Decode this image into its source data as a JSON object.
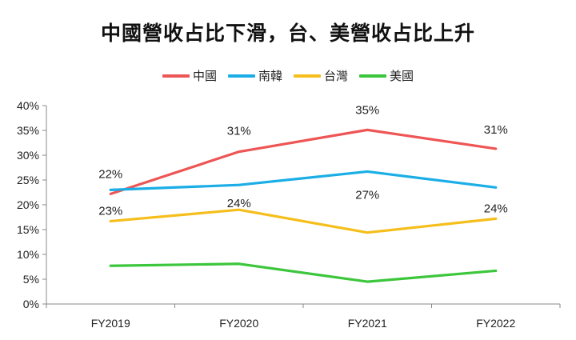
{
  "chart_data": {
    "type": "line",
    "title": "中國營收占比下滑，台、美營收占比上升",
    "xlabel": "",
    "ylabel": "",
    "categories": [
      "FY2019",
      "FY2020",
      "FY2021",
      "FY2022"
    ],
    "ylim": [
      0,
      40
    ],
    "yticks": [
      "0%",
      "5%",
      "10%",
      "15%",
      "20%",
      "25%",
      "30%",
      "35%",
      "40%"
    ],
    "legend_position": "top-center",
    "grid": false,
    "series": [
      {
        "name": "中國",
        "color": "#EE5555",
        "values": [
          22.2,
          30.7,
          35.1,
          31.3
        ],
        "labels": [
          "22%",
          "31%",
          "35%",
          "31%"
        ]
      },
      {
        "name": "南韓",
        "color": "#1BAEE6",
        "values": [
          23.0,
          24.0,
          26.7,
          23.5
        ],
        "labels": [
          "23%",
          "24%",
          "27%",
          "24%"
        ]
      },
      {
        "name": "台灣",
        "color": "#F5BE1B",
        "values": [
          16.7,
          19.0,
          14.4,
          17.2
        ],
        "labels": [
          "",
          "",
          "",
          ""
        ]
      },
      {
        "name": "美國",
        "color": "#3CC63C",
        "values": [
          7.7,
          8.1,
          4.5,
          6.7
        ],
        "labels": [
          "",
          "",
          "",
          ""
        ]
      }
    ]
  }
}
